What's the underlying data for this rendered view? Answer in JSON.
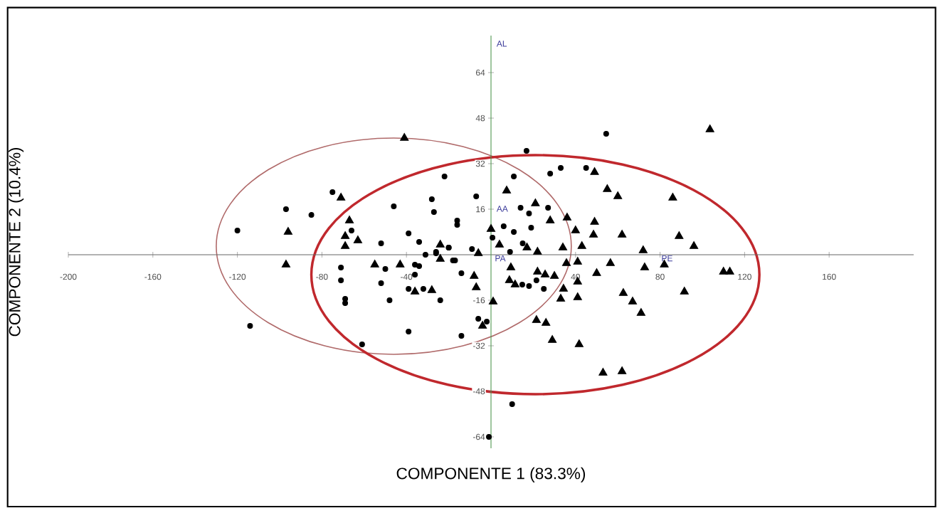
{
  "chart_data": {
    "type": "scatter",
    "xlabel": "COMPONENTE 1 (83.3%)",
    "ylabel": "COMPONENTE 2 (10.4%)",
    "xlim": [
      -200,
      200
    ],
    "ylim": [
      -68,
      77
    ],
    "xticks": [
      -200,
      -160,
      -120,
      -80,
      -40,
      40,
      80,
      120,
      160
    ],
    "yticks": [
      -64,
      -48,
      -32,
      -16,
      16,
      32,
      48,
      64
    ],
    "annotations": [
      "AL",
      "AA",
      "PA",
      "PE"
    ],
    "series": [
      {
        "type": "scatter",
        "marker": "circle",
        "color": "#000000",
        "x": [
          -22,
          -75,
          -97,
          -85,
          -120,
          -46,
          -28,
          -27,
          -7,
          -16,
          -16,
          -39,
          -52,
          -34,
          -20,
          -26,
          -17,
          -9,
          -66,
          -71,
          -71,
          -69,
          -69,
          -52,
          -50,
          -48,
          -39,
          -36,
          -36,
          -34,
          -32,
          -31,
          -26,
          -24,
          -20,
          -18,
          -14,
          -6,
          -2,
          -14,
          -39,
          -61,
          -114,
          -1,
          54.5,
          16.8,
          28,
          33,
          45,
          10.8,
          14,
          18,
          27,
          6,
          10.8,
          19,
          15,
          0.7,
          9,
          14.8,
          18,
          25,
          21.5,
          10
        ],
        "values": [
          27.5,
          22,
          16,
          14,
          8.5,
          17,
          19.5,
          15,
          20.5,
          12,
          10.5,
          7.5,
          4,
          4.5,
          2.5,
          1,
          -2,
          2,
          8.5,
          -4.5,
          -9,
          -15.5,
          -17,
          -10,
          -5,
          -16,
          -12,
          -3.5,
          -7,
          -4,
          -12,
          0,
          0.5,
          -16,
          2.5,
          -2,
          -6.5,
          -22.5,
          -23.5,
          -28.5,
          -27,
          -31.5,
          -25,
          -64,
          42.5,
          36.5,
          28.5,
          30.5,
          30.5,
          27.5,
          16.5,
          14.5,
          16.5,
          10,
          8,
          9.5,
          4,
          6,
          1,
          -10.5,
          -11,
          -12,
          -9,
          -52.5
        ]
      },
      {
        "type": "scatter",
        "marker": "triangle",
        "color": "#000000",
        "x": [
          -41,
          -71,
          -96,
          -67,
          -69,
          -69,
          -63,
          -24,
          -6,
          0,
          -97,
          -55,
          -43,
          -36,
          -28,
          -24,
          -8,
          -7,
          1,
          -4,
          103.6,
          49,
          7.4,
          21,
          55,
          60,
          86,
          28,
          36,
          49,
          89,
          48.5,
          62,
          40,
          4,
          17,
          34,
          43,
          72,
          96,
          22,
          9.4,
          22,
          25.6,
          30,
          35.7,
          41,
          50,
          56.5,
          72.7,
          82,
          110,
          113,
          8.7,
          11.4,
          41,
          34.3,
          33,
          41,
          62.6,
          67,
          71,
          91.5,
          21.5,
          26,
          29,
          41.7,
          53,
          62
        ],
        "values": [
          41,
          20,
          8,
          12,
          6.5,
          3,
          5,
          3.5,
          0.5,
          9,
          -3.5,
          -3.5,
          -3.5,
          -13,
          -12.5,
          -1.5,
          -7.5,
          -11.5,
          -16.5,
          -25,
          44,
          29,
          22.5,
          18,
          23,
          20.5,
          20,
          12,
          13,
          11.5,
          6.5,
          7,
          7,
          8.5,
          3.5,
          2.5,
          2.5,
          3,
          1.5,
          3,
          1,
          -4.5,
          -6,
          -7,
          -7.5,
          -3,
          -2.5,
          -6.5,
          -3,
          -4.5,
          -3.5,
          -6,
          -6,
          -9,
          -10.5,
          -9.5,
          -12,
          -15.5,
          -15,
          -13.5,
          -16.5,
          -20.5,
          -13,
          -23,
          -24,
          -30,
          -31.5,
          -41.5,
          -41
        ]
      }
    ]
  }
}
